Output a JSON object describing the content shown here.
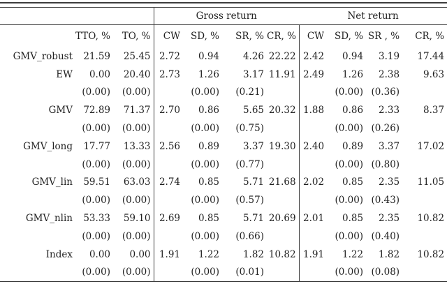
{
  "colors": {
    "background": "#ffffff",
    "text": "#1f1f1f",
    "rule": "#3c3c3c"
  },
  "table": {
    "group_headers": [
      {
        "label": "",
        "span": "3"
      },
      {
        "label": "Gross return",
        "span": "4"
      },
      {
        "label": "Net return",
        "span": "4"
      }
    ],
    "columns": [
      "",
      "TTO, %",
      "TO, %",
      "CW",
      "SD, %",
      "SR, %",
      "CR, %",
      "CW",
      "SD, %",
      "SR , %",
      "CR, %"
    ],
    "rows": [
      {
        "cells": [
          "GMV_robust",
          "21.59",
          "25.45",
          "2.72",
          "0.94",
          "4.26",
          "22.22",
          "2.42",
          "0.94",
          "3.19",
          "17.44"
        ]
      },
      {
        "cells": [
          "EW",
          "0.00",
          "20.40",
          "2.73",
          "1.26",
          "3.17",
          "11.91",
          "2.49",
          "1.26",
          "2.38",
          "9.63"
        ]
      },
      {
        "cells": [
          "",
          "(0.00)",
          "(0.00)",
          "",
          "(0.00)",
          "(0.21)",
          "",
          "",
          "(0.00)",
          "(0.36)",
          ""
        ]
      },
      {
        "cells": [
          "GMV",
          "72.89",
          "71.37",
          "2.70",
          "0.86",
          "5.65",
          "20.32",
          "1.88",
          "0.86",
          "2.33",
          "8.37"
        ]
      },
      {
        "cells": [
          "",
          "(0.00)",
          "(0.00)",
          "",
          "(0.00)",
          "(0.75)",
          "",
          "",
          "(0.00)",
          "(0.26)",
          ""
        ]
      },
      {
        "cells": [
          "GMV_long",
          "17.77",
          "13.33",
          "2.56",
          "0.89",
          "3.37",
          "19.30",
          "2.40",
          "0.89",
          "3.37",
          "17.02"
        ]
      },
      {
        "cells": [
          "",
          "(0.00)",
          "(0.00)",
          "",
          "(0.00)",
          "(0.77)",
          "",
          "",
          "(0.00)",
          "(0.80)",
          ""
        ]
      },
      {
        "cells": [
          "GMV_lin",
          "59.51",
          "63.03",
          "2.74",
          "0.85",
          "5.71",
          "21.68",
          "2.02",
          "0.85",
          "2.35",
          "11.05"
        ]
      },
      {
        "cells": [
          "",
          "(0.00)",
          "(0.00)",
          "",
          "(0.00)",
          "(0.57)",
          "",
          "",
          "(0.00)",
          "(0.43)",
          ""
        ]
      },
      {
        "cells": [
          "GMV_nlin",
          "53.33",
          "59.10",
          "2.69",
          "0.85",
          "5.71",
          "20.69",
          "2.01",
          "0.85",
          "2.35",
          "10.82"
        ]
      },
      {
        "cells": [
          "",
          "(0.00)",
          "(0.00)",
          "",
          "(0.00)",
          "(0.66)",
          "",
          "",
          "(0.00)",
          "(0.40)",
          ""
        ]
      },
      {
        "cells": [
          "Index",
          "0.00",
          "0.00",
          "1.91",
          "1.22",
          "1.82",
          "10.82",
          "1.91",
          "1.22",
          "1.82",
          "10.82"
        ]
      },
      {
        "cells": [
          "",
          "(0.00)",
          "(0.00)",
          "",
          "(0.00)",
          "(0.01)",
          "",
          "",
          "(0.00)",
          "(0.08)",
          ""
        ]
      }
    ]
  }
}
